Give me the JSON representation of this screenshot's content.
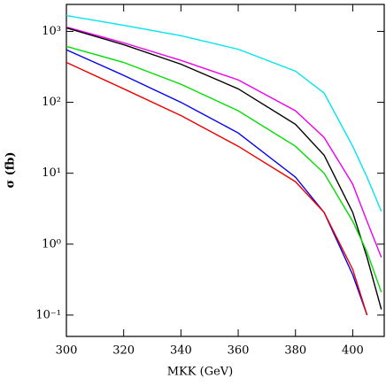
{
  "chart_data": {
    "type": "line",
    "xlabel": "MKK (GeV)",
    "ylabel": "σ (fb)",
    "x": [
      300,
      320,
      340,
      360,
      380,
      390,
      400,
      405,
      410
    ],
    "series": [
      {
        "color": "#00e5ee",
        "values": [
          1675,
          1220,
          870,
          560,
          275,
          135,
          24,
          8.8,
          2.9
        ]
      },
      {
        "color": "#ee00ee",
        "values": [
          1150,
          690,
          390,
          207,
          76,
          32,
          7,
          2.1,
          0.65
        ]
      },
      {
        "color": "#000000",
        "values": [
          1120,
          650,
          345,
          155,
          49,
          18,
          2.8,
          0.65,
          0.12
        ]
      },
      {
        "color": "#00dd00",
        "values": [
          615,
          365,
          180,
          76,
          24,
          10,
          2.1,
          0.77,
          0.21
        ]
      },
      {
        "color": "#0000ee",
        "values": [
          550,
          240,
          100,
          37,
          8.8,
          2.8,
          0.37,
          0.1,
          null
        ]
      },
      {
        "color": "#ee0000",
        "values": [
          365,
          155,
          65,
          24,
          7.6,
          2.8,
          0.44,
          0.1,
          null
        ]
      }
    ],
    "xlim": [
      300,
      411
    ],
    "xticks": [
      300,
      320,
      340,
      360,
      380,
      400
    ],
    "ylim": [
      0.05,
      2400
    ],
    "ylog": true,
    "yticks": [
      {
        "value": 0.1,
        "label": "10⁻¹"
      },
      {
        "value": 1,
        "label": "10⁰"
      },
      {
        "value": 10,
        "label": "10¹"
      },
      {
        "value": 100,
        "label": "10²"
      },
      {
        "value": 1000,
        "label": "10³"
      }
    ]
  }
}
